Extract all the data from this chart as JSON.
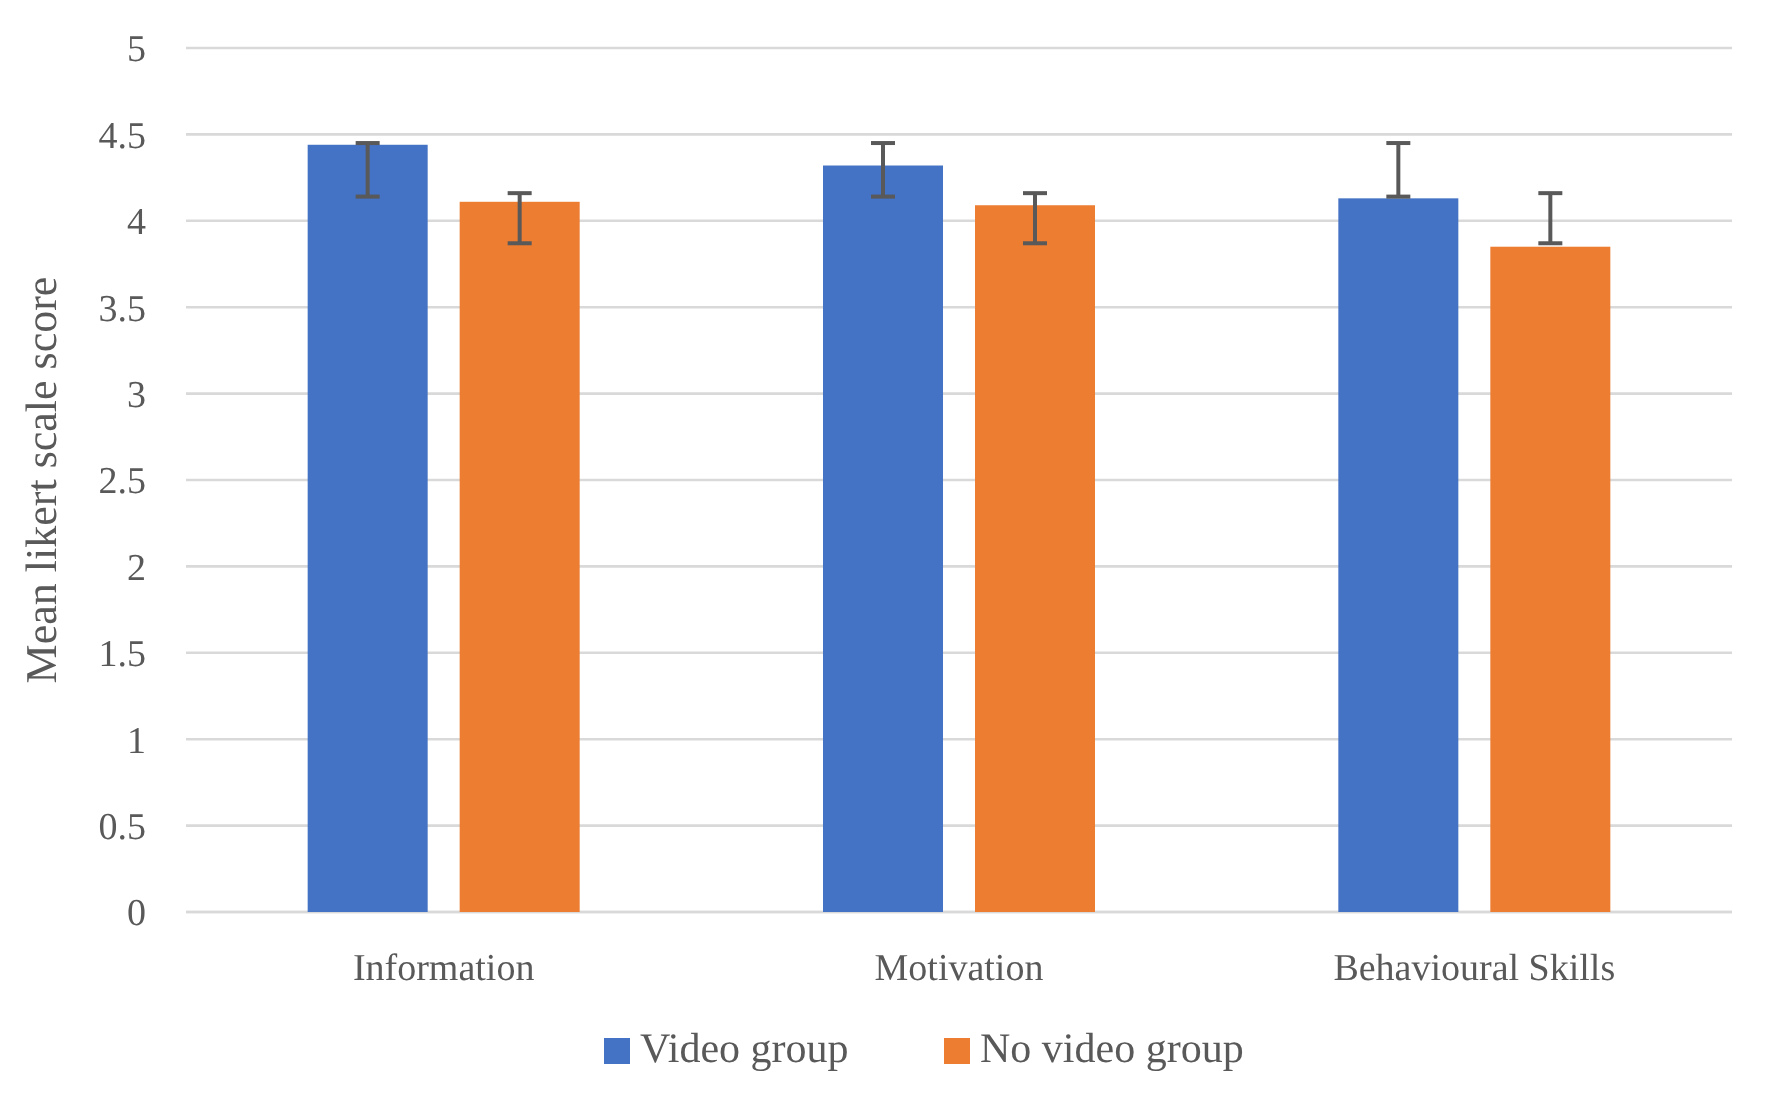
{
  "chart_data": {
    "type": "bar",
    "ylabel": "Mean likert scale score",
    "categories": [
      "Information",
      "Motivation",
      "Behavioural Skills"
    ],
    "series": [
      {
        "name": "Video group",
        "color": "#4472c4",
        "values": [
          4.44,
          4.32,
          4.13
        ],
        "errors": [
          [
            4.14,
            4.45
          ],
          [
            4.14,
            4.45
          ],
          [
            4.14,
            4.45
          ]
        ]
      },
      {
        "name": "No video group",
        "color": "#ed7d31",
        "values": [
          4.11,
          4.09,
          3.85
        ],
        "errors": [
          [
            3.87,
            4.16
          ],
          [
            3.87,
            4.16
          ],
          [
            3.87,
            4.16
          ]
        ]
      }
    ],
    "ylim": [
      0,
      5
    ],
    "yticks": [
      0,
      0.5,
      1,
      1.5,
      2,
      2.5,
      3,
      3.5,
      4,
      4.5,
      5
    ],
    "grid": "y",
    "legend": "bottom"
  }
}
